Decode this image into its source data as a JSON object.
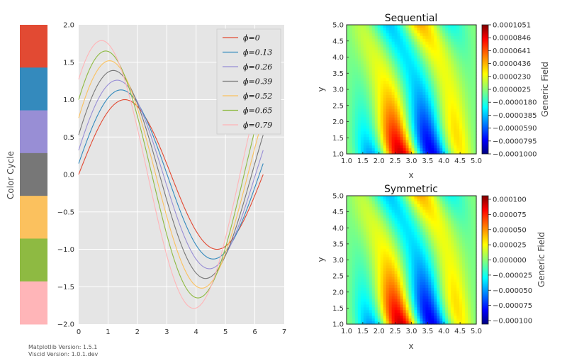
{
  "colors": {
    "cycle": [
      "#E24A33",
      "#348ABD",
      "#988ED5",
      "#777777",
      "#FBC15E",
      "#8EBA42",
      "#FFB5B8"
    ],
    "axes_bg": "#E5E5E5",
    "grid": "#FFFFFF"
  },
  "version_text": {
    "line1": "Matplotlib Version: 1.5.1",
    "line2": "Viscid Version: 1.0.1.dev"
  },
  "chart_data": [
    {
      "type": "heatmap",
      "id": "color-cycle",
      "ylabel": "Color Cycle",
      "colors": [
        "#E24A33",
        "#348ABD",
        "#988ED5",
        "#777777",
        "#FBC15E",
        "#8EBA42",
        "#FFB5B8"
      ]
    },
    {
      "type": "line",
      "id": "phase-lines",
      "function": "(1 + phi) * sin(x + phi)",
      "x_range": [
        0,
        6.283
      ],
      "xlim": [
        0,
        7
      ],
      "ylim": [
        -2.0,
        2.0
      ],
      "xticks": [
        "0",
        "1",
        "2",
        "3",
        "4",
        "5",
        "6",
        "7"
      ],
      "yticks": [
        "2.0",
        "1.5",
        "1.0",
        "0.5",
        "0.0",
        "−0.5",
        "−1.0",
        "−1.5",
        "−2.0"
      ],
      "grid": true,
      "legend_position": "top-right",
      "series": [
        {
          "name": "ϕ=0",
          "phi": 0.0
        },
        {
          "name": "ϕ=0.13",
          "phi": 0.13
        },
        {
          "name": "ϕ=0.26",
          "phi": 0.26
        },
        {
          "name": "ϕ=0.39",
          "phi": 0.39
        },
        {
          "name": "ϕ=0.52",
          "phi": 0.52
        },
        {
          "name": "ϕ=0.65",
          "phi": 0.65
        },
        {
          "name": "ϕ=0.79",
          "phi": 0.79
        }
      ]
    },
    {
      "type": "heatmap",
      "id": "sequential",
      "title": "Sequential",
      "xlabel": "x",
      "ylabel": "y",
      "xlim": [
        1.0,
        5.0
      ],
      "ylim": [
        1.0,
        5.0
      ],
      "xticks": [
        "1.0",
        "1.5",
        "2.0",
        "2.5",
        "3.0",
        "3.5",
        "4.0",
        "4.5",
        "5.0"
      ],
      "yticks": [
        "5.0",
        "4.5",
        "4.0",
        "3.5",
        "3.0",
        "2.5",
        "2.0",
        "1.5",
        "1.0"
      ],
      "colormap": "jet",
      "colorbar_label": "Generic Field",
      "colorbar_ticks": [
        "0.0001051",
        "0.0000846",
        "0.0000641",
        "0.0000436",
        "0.0000230",
        "0.0000025",
        "−0.0000180",
        "−0.0000385",
        "−0.0000590",
        "−0.0000795",
        "−0.0001000"
      ]
    },
    {
      "type": "heatmap",
      "id": "symmetric",
      "title": "Symmetric",
      "xlabel": "x",
      "ylabel": "y",
      "xlim": [
        1.0,
        5.0
      ],
      "ylim": [
        1.0,
        5.0
      ],
      "xticks": [
        "1.0",
        "1.5",
        "2.0",
        "2.5",
        "3.0",
        "3.5",
        "4.0",
        "4.5",
        "5.0"
      ],
      "yticks": [
        "5.0",
        "4.5",
        "4.0",
        "3.5",
        "3.0",
        "2.5",
        "2.0",
        "1.5",
        "1.0"
      ],
      "colormap": "jet",
      "colorbar_label": "Generic Field",
      "colorbar_ticks": [
        "0.000100",
        "0.000075",
        "0.000050",
        "0.000025",
        "0.000000",
        "−0.000025",
        "−0.000050",
        "−0.000075",
        "−0.000100"
      ]
    }
  ]
}
